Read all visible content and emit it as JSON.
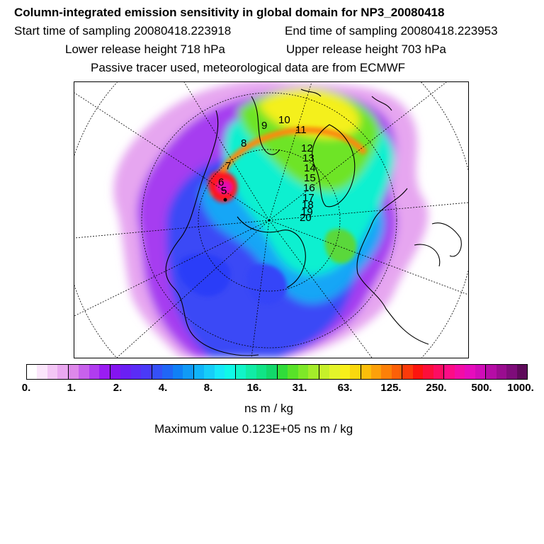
{
  "header": {
    "title": "Column-integrated emission sensitivity in global domain for NP3_20080418",
    "start_time": "Start time of sampling 20080418.223918",
    "end_time": "End time of sampling 20080418.223953",
    "lower_release": "Lower release height  718 hPa",
    "upper_release": "Upper release height  703 hPa",
    "tracer_note": "Passive tracer used, meteorological data are from ECMWF"
  },
  "map": {
    "projection": "polar stereographic (north pole)",
    "trajectory_hour_labels": [
      "8",
      "9",
      "10",
      "11",
      "12",
      "13",
      "14",
      "15",
      "16",
      "17",
      "18",
      "19",
      "20",
      "7",
      "6",
      "5"
    ]
  },
  "legend": {
    "tick_labels": [
      "0.",
      "1.",
      "2.",
      "4.",
      "8.",
      "16.",
      "31.",
      "63.",
      "125.",
      "250.",
      "500.",
      "1000."
    ],
    "colors": [
      "#ffffff",
      "#fbe6fb",
      "#f3c6f5",
      "#eaa8f0",
      "#de88ea",
      "#c861ec",
      "#b13cf0",
      "#9a1df2",
      "#8414f0",
      "#6a1ff4",
      "#5a2cf6",
      "#4a3af8",
      "#3550f8",
      "#2066f6",
      "#1080f6",
      "#109af6",
      "#10b4f8",
      "#16cdf8",
      "#16e8f8",
      "#10f8e8",
      "#10f4c8",
      "#10eca6",
      "#10e486",
      "#12d86a",
      "#30dc3a",
      "#58e228",
      "#7ee828",
      "#a4ec2a",
      "#c6f02a",
      "#e4f42a",
      "#f8f01a",
      "#fad80e",
      "#fcbe0a",
      "#fca00a",
      "#fc8008",
      "#fc6008",
      "#fc3a0a",
      "#fc140e",
      "#fc0e3a",
      "#fc0c62",
      "#fc0c86",
      "#f20ca6",
      "#e60cbc",
      "#d00cb8",
      "#b60ca6",
      "#9a0c90",
      "#7e0c7a",
      "#5e0a5a"
    ],
    "units": "ns m / kg",
    "max_value": "Maximum value  0.123E+05 ns m / kg"
  }
}
